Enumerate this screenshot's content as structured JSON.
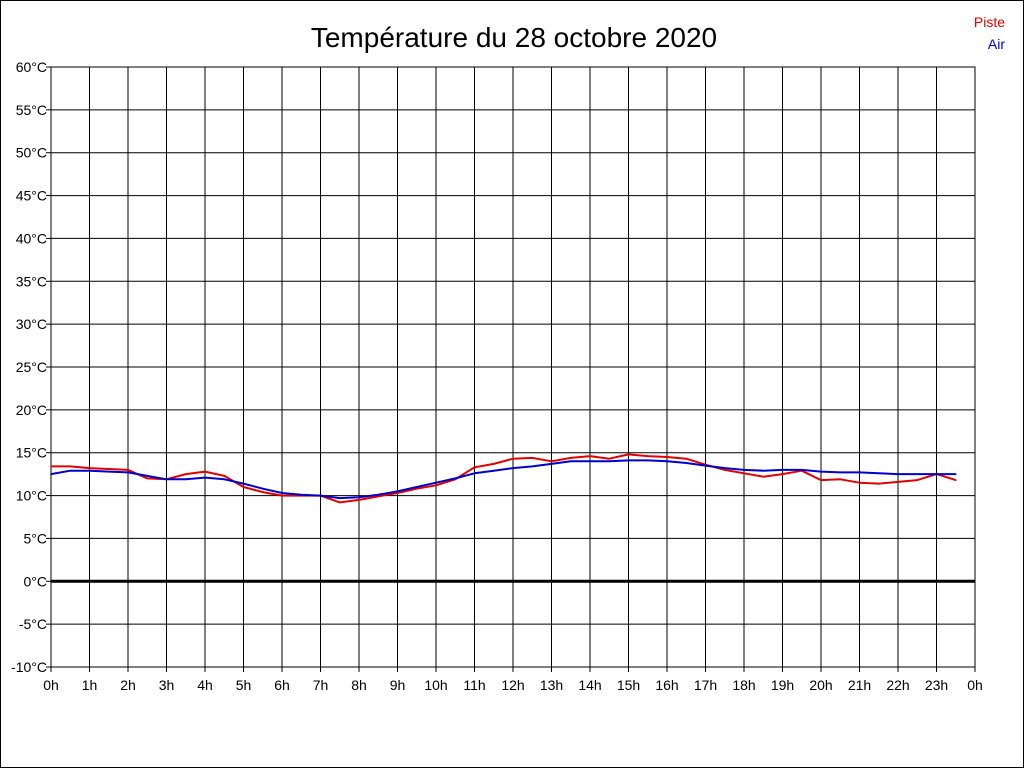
{
  "chart_data": {
    "type": "line",
    "title": "Température du 28 octobre 2020",
    "xlabel": "",
    "ylabel": "",
    "x_tick_labels": [
      "0h",
      "1h",
      "2h",
      "3h",
      "4h",
      "5h",
      "6h",
      "7h",
      "8h",
      "9h",
      "10h",
      "11h",
      "12h",
      "13h",
      "14h",
      "15h",
      "16h",
      "17h",
      "18h",
      "19h",
      "20h",
      "21h",
      "22h",
      "23h",
      "0h"
    ],
    "y_tick_labels": [
      "60°C",
      "55°C",
      "50°C",
      "45°C",
      "40°C",
      "35°C",
      "30°C",
      "25°C",
      "20°C",
      "15°C",
      "10°C",
      "5°C",
      "0°C",
      "-5°C",
      "-10°C"
    ],
    "xlim": [
      0,
      24
    ],
    "ylim": [
      -10,
      60
    ],
    "grid": true,
    "legend_position": "top-right",
    "zero_line": true,
    "x": [
      0,
      0.5,
      1,
      1.5,
      2,
      2.5,
      3,
      3.5,
      4,
      4.5,
      5,
      5.5,
      6,
      6.5,
      7,
      7.5,
      8,
      8.5,
      9,
      9.5,
      10,
      10.5,
      11,
      11.5,
      12,
      12.5,
      13,
      13.5,
      14,
      14.5,
      15,
      15.5,
      16,
      16.5,
      17,
      17.5,
      18,
      18.5,
      19,
      19.5,
      20,
      20.5,
      21,
      21.5,
      22,
      22.5,
      23,
      23.5
    ],
    "series": [
      {
        "name": "Piste",
        "color": "#e00000",
        "values": [
          13.4,
          13.4,
          13.2,
          13.1,
          13.0,
          12.0,
          11.9,
          12.5,
          12.8,
          12.3,
          11.0,
          10.4,
          10.0,
          10.0,
          10.0,
          9.2,
          9.5,
          9.9,
          10.3,
          10.8,
          11.2,
          11.9,
          13.3,
          13.7,
          14.3,
          14.4,
          14.0,
          14.4,
          14.6,
          14.3,
          14.8,
          14.6,
          14.5,
          14.3,
          13.6,
          13.0,
          12.6,
          12.2,
          12.5,
          12.9,
          11.8,
          11.9,
          11.5,
          11.4,
          11.6,
          11.8,
          12.5,
          11.8
        ]
      },
      {
        "name": "Air",
        "color": "#0000cc",
        "values": [
          12.5,
          12.9,
          12.9,
          12.8,
          12.7,
          12.3,
          11.9,
          11.9,
          12.1,
          11.9,
          11.4,
          10.8,
          10.3,
          10.1,
          10.0,
          9.7,
          9.8,
          10.1,
          10.5,
          11.0,
          11.5,
          12.0,
          12.6,
          12.9,
          13.2,
          13.4,
          13.7,
          14.0,
          14.0,
          14.0,
          14.1,
          14.1,
          14.0,
          13.8,
          13.5,
          13.2,
          13.0,
          12.9,
          13.0,
          13.0,
          12.8,
          12.7,
          12.7,
          12.6,
          12.5,
          12.5,
          12.5,
          12.5
        ]
      }
    ]
  }
}
